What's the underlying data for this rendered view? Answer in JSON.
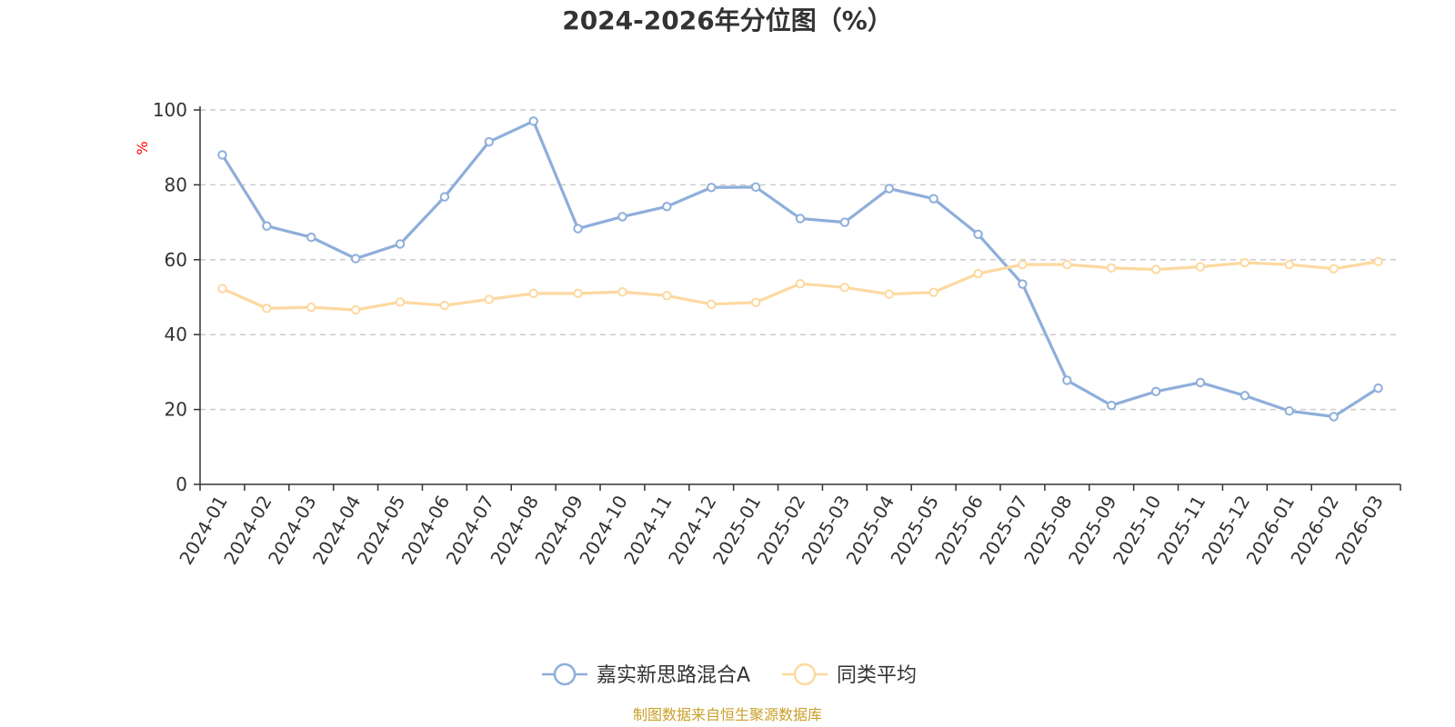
{
  "chart_data": {
    "type": "line",
    "title": "2024-2026年分位图（%）",
    "unit_label": "%",
    "ylim": [
      0,
      100
    ],
    "yticks": [
      0,
      20,
      40,
      60,
      80,
      100
    ],
    "grid": true,
    "legend_position": "bottom",
    "categories": [
      "2024-01",
      "2024-02",
      "2024-03",
      "2024-04",
      "2024-05",
      "2024-06",
      "2024-07",
      "2024-08",
      "2024-09",
      "2024-10",
      "2024-11",
      "2024-12",
      "2025-01",
      "2025-02",
      "2025-03",
      "2025-04",
      "2025-05",
      "2025-06",
      "2025-07",
      "2025-08",
      "2025-09",
      "2025-10",
      "2025-11",
      "2025-12",
      "2026-01",
      "2026-02",
      "2026-03"
    ],
    "series": [
      {
        "name": "嘉实新思路混合A",
        "color": "#8eaedb",
        "values": [
          88,
          69,
          66,
          60.3,
          64.2,
          76.8,
          91.5,
          97,
          68.3,
          71.5,
          74.2,
          79.3,
          79.4,
          71,
          70,
          79,
          76.3,
          66.8,
          53.5,
          27.8,
          21.1,
          24.8,
          27.2,
          23.7,
          19.6,
          18.1,
          25.7
        ]
      },
      {
        "name": "同类平均",
        "color": "#fdd9a0",
        "values": [
          52.3,
          47,
          47.3,
          46.6,
          48.7,
          47.8,
          49.4,
          51,
          51,
          51.4,
          50.4,
          48.1,
          48.6,
          53.6,
          52.6,
          50.8,
          51.3,
          56.3,
          58.7,
          58.7,
          57.8,
          57.4,
          58.1,
          59.2,
          58.7,
          57.6,
          59.5
        ]
      }
    ]
  },
  "source_note": "制图数据来自恒生聚源数据库"
}
